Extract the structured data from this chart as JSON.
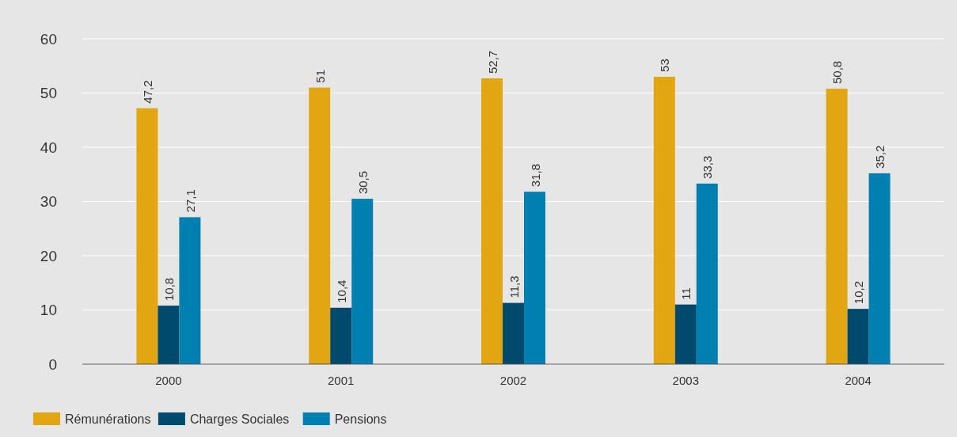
{
  "chart_data": {
    "type": "bar",
    "categories": [
      "2000",
      "2001",
      "2002",
      "2003",
      "2004"
    ],
    "series": [
      {
        "name": "Rémunérations",
        "color": "#e3a613",
        "values": [
          47.2,
          51,
          52.7,
          53,
          50.8
        ],
        "value_labels": [
          "47,2",
          "51",
          "52,7",
          "53",
          "50,8"
        ]
      },
      {
        "name": "Charges Sociales",
        "color": "#004a6e",
        "values": [
          10.8,
          10.4,
          11.3,
          11,
          10.2
        ],
        "value_labels": [
          "10,8",
          "10,4",
          "11,3",
          "11",
          "10,2"
        ]
      },
      {
        "name": "Pensions",
        "color": "#0080b0",
        "values": [
          27.1,
          30.5,
          31.8,
          33.3,
          35.2
        ],
        "value_labels": [
          "27,1",
          "30,5",
          "31,8",
          "33,3",
          "35,2"
        ]
      }
    ],
    "ylim": [
      0,
      60
    ],
    "yticks": [
      0,
      10,
      20,
      30,
      40,
      50,
      60
    ],
    "grid": "y",
    "legend": "bottom"
  }
}
